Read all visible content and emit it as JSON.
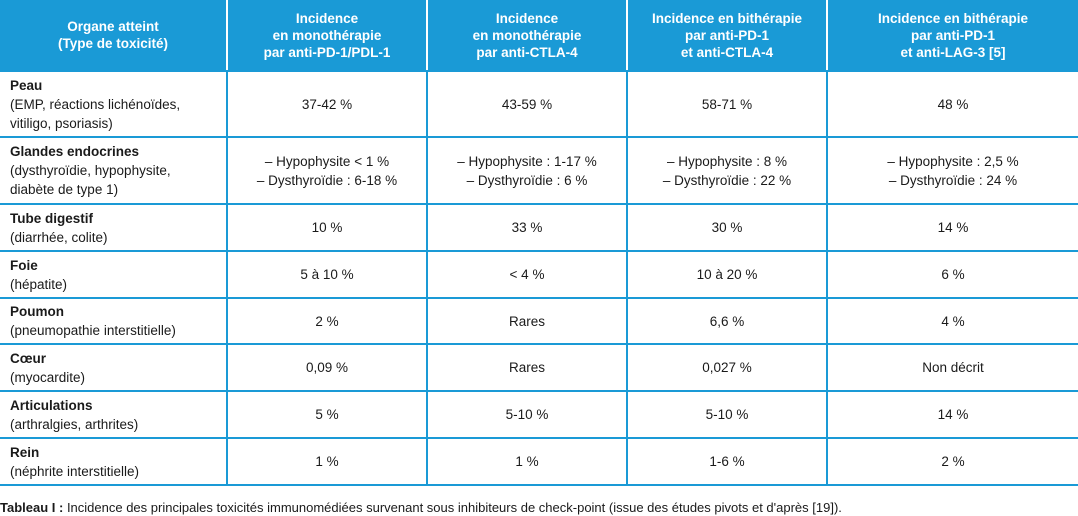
{
  "header": {
    "col0": [
      "Organe atteint",
      "(Type de toxicité)"
    ],
    "col1": [
      "Incidence",
      "en monothérapie",
      "par anti-PD-1/PDL-1"
    ],
    "col2": [
      "Incidence",
      "en monothérapie",
      "par anti-CTLA-4"
    ],
    "col3": [
      "Incidence en bithérapie",
      "par anti-PD-1",
      "et anti-CTLA-4"
    ],
    "col4": [
      "Incidence en bithérapie",
      "par anti-PD-1",
      "et anti-LAG-3 [5]"
    ]
  },
  "rows": [
    {
      "organ": "Peau",
      "toxicity": [
        "(EMP, réactions lichénoïdes,",
        "vitiligo, psoriasis)"
      ],
      "values": [
        [
          "37-42 %"
        ],
        [
          "43-59 %"
        ],
        [
          "58-71 %"
        ],
        [
          "48 %"
        ]
      ]
    },
    {
      "organ": "Glandes endocrines",
      "toxicity": [
        "(dysthyroïdie, hypophysite,",
        "diabète de type 1)"
      ],
      "values": [
        [
          "– Hypophysite < 1 %",
          "– Dysthyroïdie : 6-18 %"
        ],
        [
          "– Hypophysite : 1-17 %",
          "– Dysthyroïdie : 6 %"
        ],
        [
          "– Hypophysite : 8 %",
          "– Dysthyroïdie : 22 %"
        ],
        [
          "– Hypophysite : 2,5 %",
          "– Dysthyroïdie : 24 %"
        ]
      ]
    },
    {
      "organ": "Tube digestif",
      "toxicity": [
        "(diarrhée, colite)"
      ],
      "values": [
        [
          "10 %"
        ],
        [
          "33 %"
        ],
        [
          "30 %"
        ],
        [
          "14 %"
        ]
      ]
    },
    {
      "organ": "Foie",
      "toxicity": [
        "(hépatite)"
      ],
      "values": [
        [
          "5 à 10 %"
        ],
        [
          "< 4 %"
        ],
        [
          "10 à 20 %"
        ],
        [
          "6 %"
        ]
      ]
    },
    {
      "organ": "Poumon",
      "toxicity": [
        "(pneumopathie interstitielle)"
      ],
      "values": [
        [
          "2 %"
        ],
        [
          "Rares"
        ],
        [
          "6,6 %"
        ],
        [
          "4 %"
        ]
      ]
    },
    {
      "organ": "Cœur",
      "toxicity": [
        "(myocardite)"
      ],
      "values": [
        [
          "0,09 %"
        ],
        [
          "Rares"
        ],
        [
          "0,027 %"
        ],
        [
          "Non décrit"
        ]
      ]
    },
    {
      "organ": "Articulations",
      "toxicity": [
        "(arthralgies, arthrites)"
      ],
      "values": [
        [
          "5 %"
        ],
        [
          "5-10 %"
        ],
        [
          "5-10 %"
        ],
        [
          "14 %"
        ]
      ]
    },
    {
      "organ": "Rein",
      "toxicity": [
        "(néphrite interstitielle)"
      ],
      "values": [
        [
          "1 %"
        ],
        [
          "1 %"
        ],
        [
          "1-6 %"
        ],
        [
          "2 %"
        ]
      ]
    }
  ],
  "caption": {
    "label": "Tableau I :",
    "text": " Incidence des principales toxicités immunomédiées survenant sous inhibiteurs de check-point (issue des études pivots et d'après [19])."
  }
}
